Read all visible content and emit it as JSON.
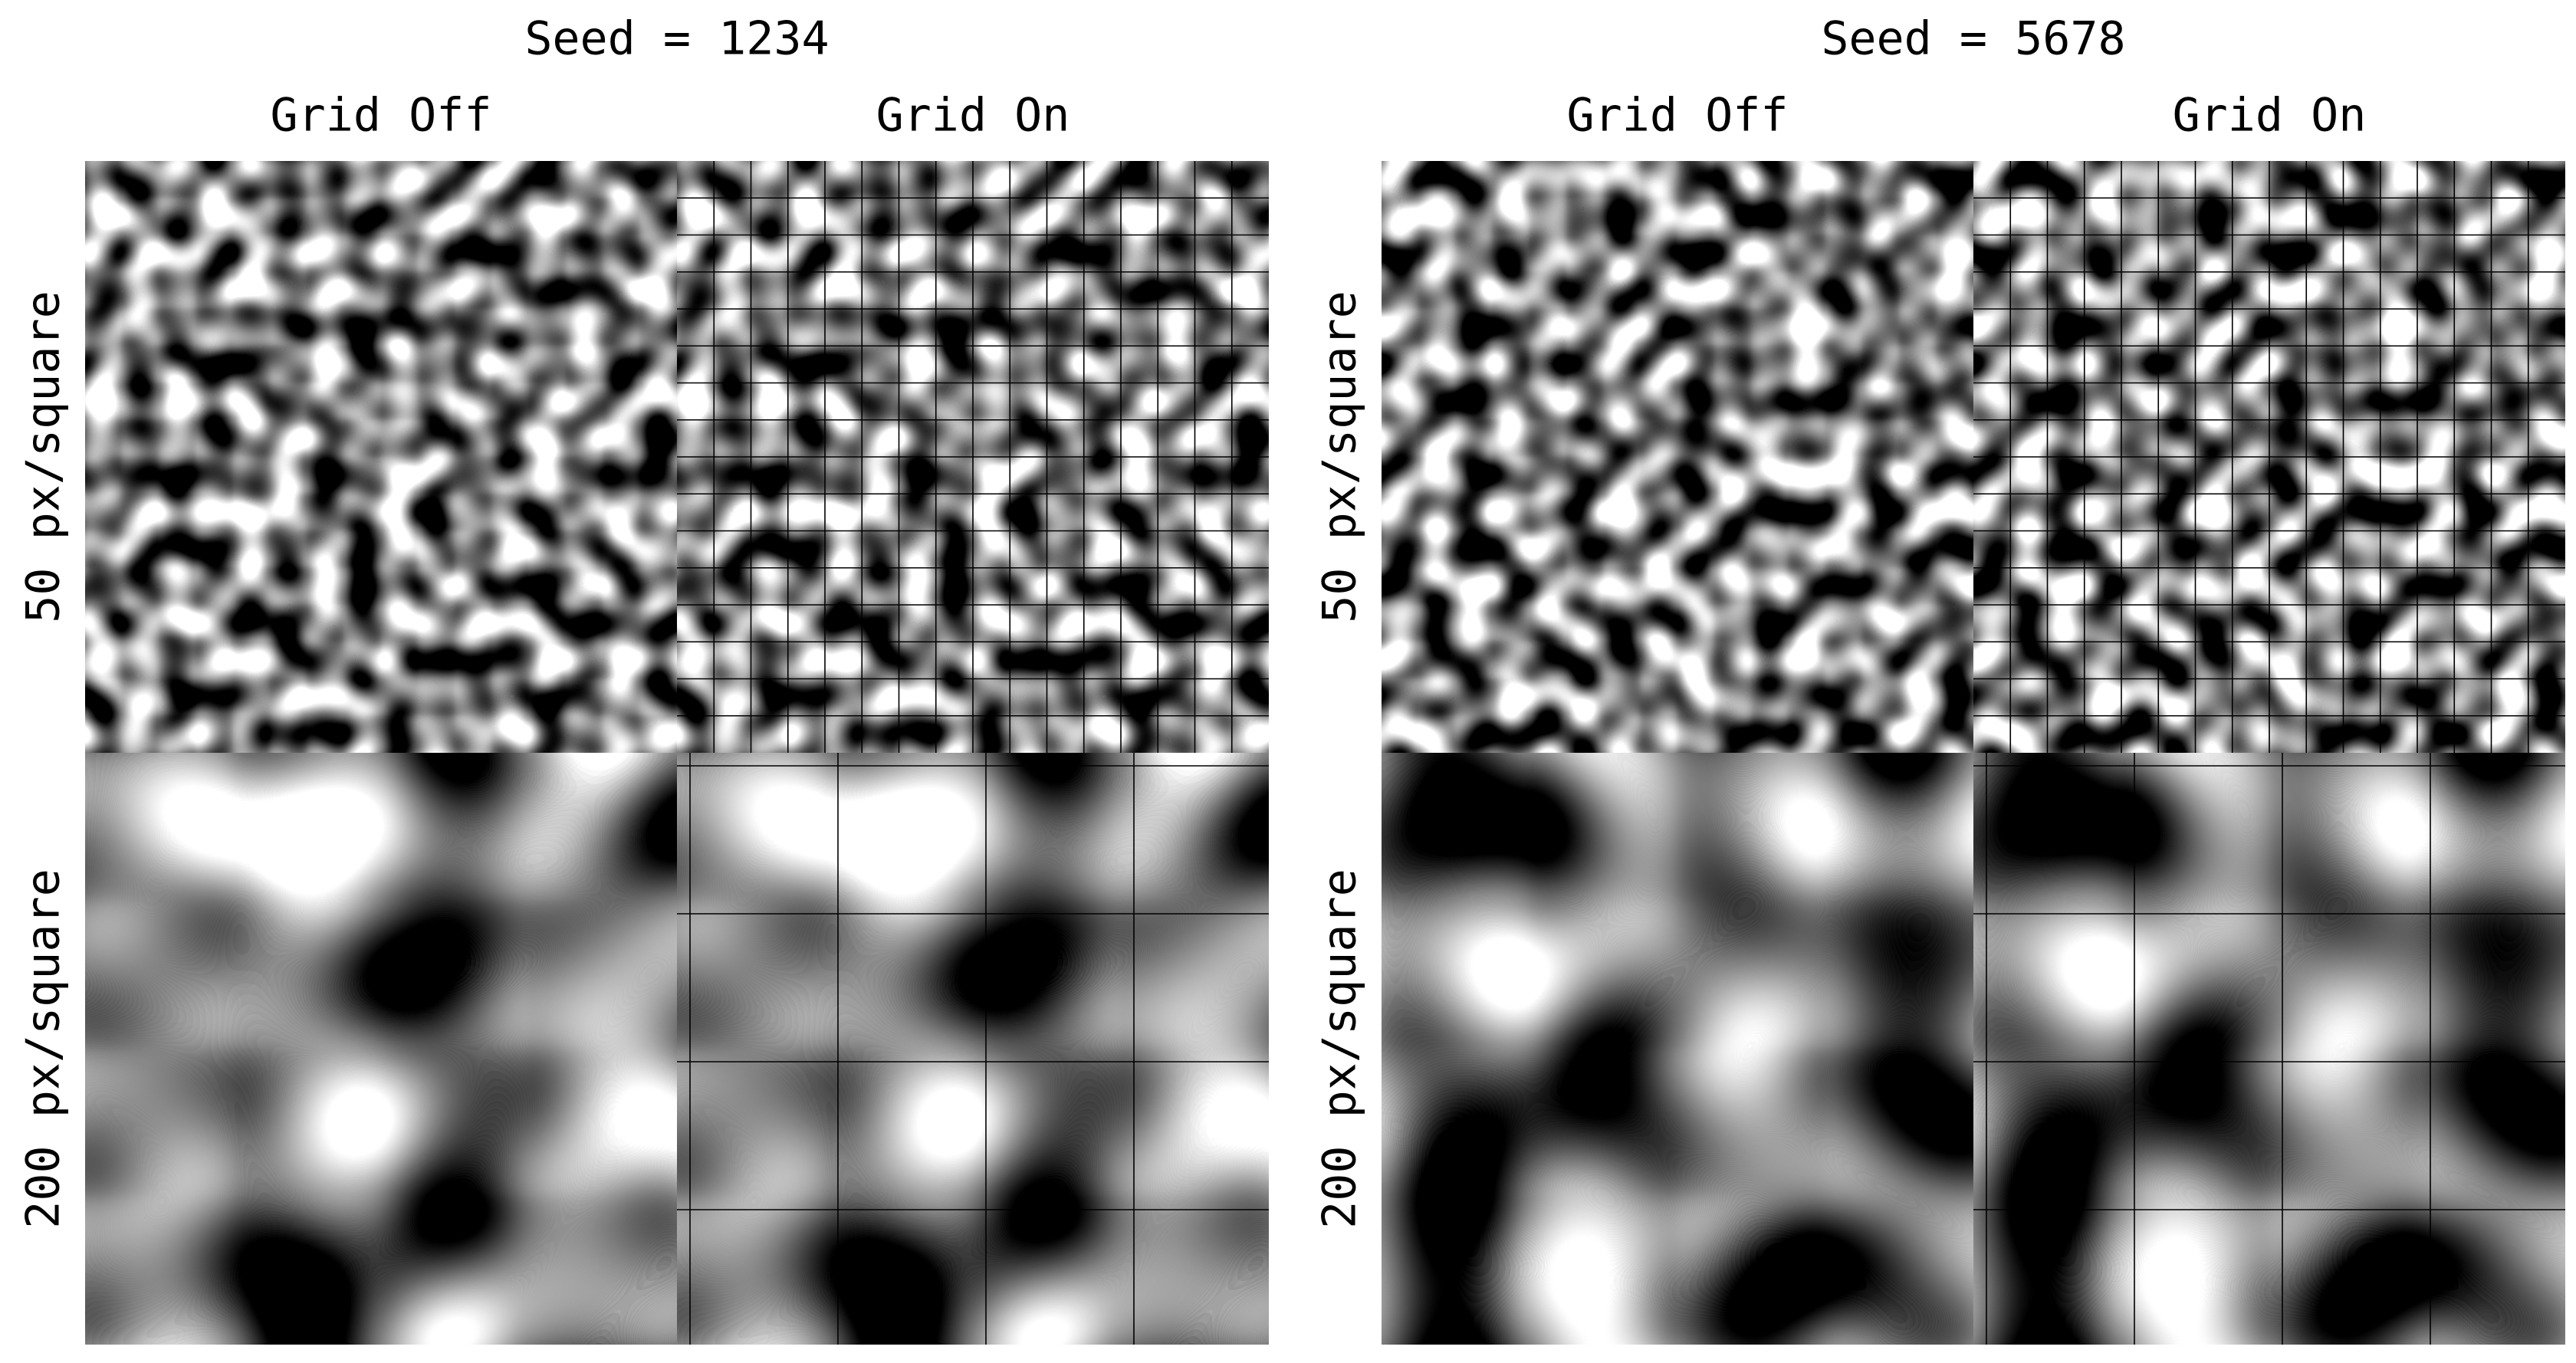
{
  "panels": [
    {
      "title": "Seed = 1234",
      "columns": [
        "Grid Off",
        "Grid On"
      ],
      "rows": [
        "50 px/square",
        "200 px/square"
      ]
    },
    {
      "title": "Seed = 5678",
      "columns": [
        "Grid Off",
        "Grid On"
      ],
      "rows": [
        "50 px/square",
        "200 px/square"
      ]
    }
  ]
}
